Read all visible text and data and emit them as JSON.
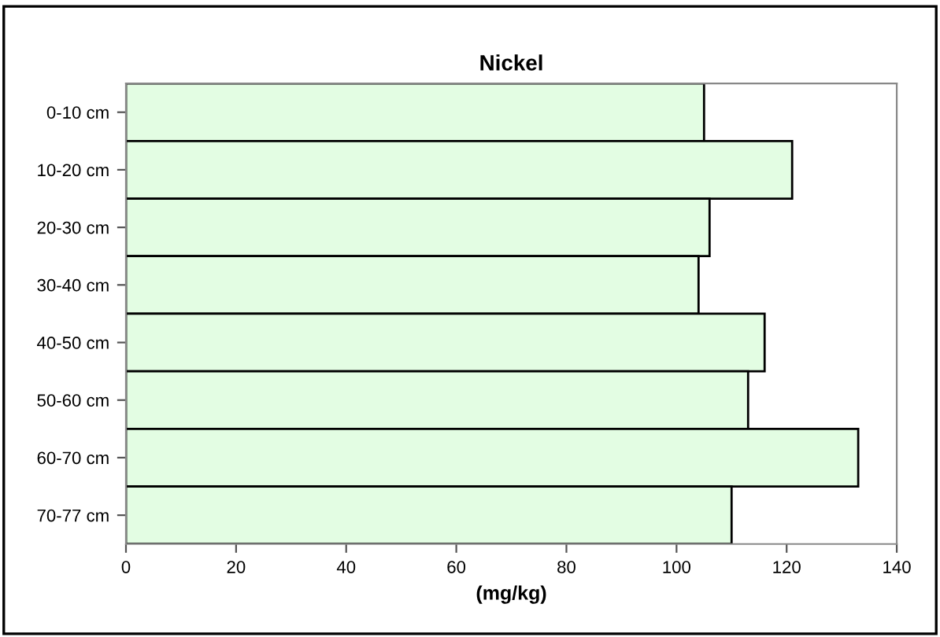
{
  "chart_data": {
    "type": "bar",
    "orientation": "horizontal",
    "title": "Nickel",
    "xlabel": "(mg/kg)",
    "categories": [
      "0-10 cm",
      "10-20 cm",
      "20-30 cm",
      "30-40 cm",
      "40-50 cm",
      "50-60 cm",
      "60-70 cm",
      "70-77 cm"
    ],
    "values": [
      105,
      121,
      106,
      104,
      116,
      113,
      133,
      110
    ],
    "color": "#e3fde3",
    "xlim": [
      0,
      140
    ],
    "xticks": [
      0,
      20,
      40,
      60,
      80,
      100,
      120,
      140
    ],
    "grid": false,
    "legend": false
  }
}
